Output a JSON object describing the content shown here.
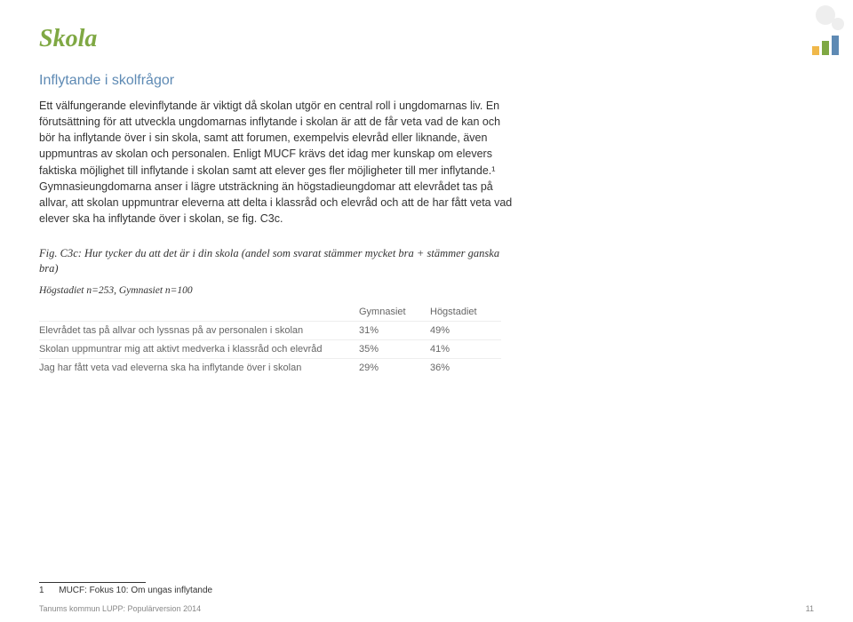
{
  "title": "Skola",
  "subheading": "Inflytande i skolfrågor",
  "body": "Ett välfungerande elevinflytande är viktigt då skolan utgör en central roll i ungdomarnas liv. En förutsättning för att utveckla ungdomarnas inflytande i skolan är att de får veta vad de kan och bör ha inflytande över i sin skola, samt att forumen, exempelvis elevråd eller liknande, även uppmuntras av skolan och personalen. Enligt MUCF krävs det idag mer kunskap om elevers faktiska möjlighet till inflytande i skolan samt att elever ges fler möjligheter till mer inflytande.¹ Gymnasieungdomarna anser i lägre utsträckning än högstadieungdomar att elevrådet tas på allvar, att skolan uppmuntrar eleverna att delta i klassråd och elevråd och att de har fått veta vad elever ska ha inflytande över i skolan, se fig. C3c.",
  "figCaption": "Fig. C3c: Hur tycker du att det är i din skola (andel som svarat stämmer mycket bra + stämmer ganska bra)",
  "sampleNote": "Högstadiet n=253, Gymnasiet n=100",
  "table": {
    "headers": {
      "col1": "",
      "col2": "Gymnasiet",
      "col3": "Högstadiet"
    },
    "rows": [
      {
        "label": "Elevrådet tas på allvar och lyssnas på av personalen i skolan",
        "v1": "31%",
        "v2": "49%"
      },
      {
        "label": "Skolan uppmuntrar mig att aktivt medverka i klassråd och elevråd",
        "v1": "35%",
        "v2": "41%"
      },
      {
        "label": "Jag har fått veta vad eleverna ska ha inflytande över i skolan",
        "v1": "29%",
        "v2": "36%"
      }
    ]
  },
  "footnote": {
    "num": "1",
    "text": "MUCF: Fokus 10: Om ungas inflytande"
  },
  "footerLeft": "Tanums kommun LUPP: Populärversion 2014",
  "footerRight": "11"
}
